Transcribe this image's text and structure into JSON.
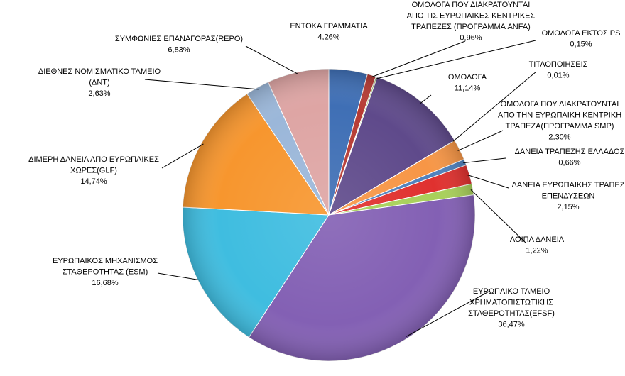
{
  "chart_data": {
    "type": "pie",
    "title": "",
    "slices": [
      {
        "label_lines": [
          "ΕΝΤΟΚΑ ΓΡΑΜΜΑΤΙΑ"
        ],
        "value_text": "4,26%",
        "value": 4.26,
        "color": "#3f6fb5"
      },
      {
        "label_lines": [
          "ΟΜΟΛΟΓΑ ΠΟΥ ΔΙΑΚΡΑΤΟΥΝΤΑΙ",
          "ΑΠΟ  ΤΙΣ ΕΥΡΩΠΑΙΚΕΣ ΚΕΝΤΡΙΚΕΣ",
          "ΤΡΑΠΕΖΕΣ  (ΠΡΟΓΡΑΜΜΑ ANFA)"
        ],
        "value_text": "0,96%",
        "value": 0.96,
        "color": "#b73b34"
      },
      {
        "label_lines": [
          "ΟΜΟΛΟΓΑ ΕΚΤΟΣ PS"
        ],
        "value_text": "0,15%",
        "value": 0.15,
        "color": "#98b954"
      },
      {
        "label_lines": [
          "ΟΜΟΛΟΓΑ"
        ],
        "value_text": "11,14%",
        "value": 11.14,
        "color": "#5f4a8b"
      },
      {
        "label_lines": [
          "ΤΙΤΛΟΠΟΙΗΣΕΙΣ"
        ],
        "value_text": "0,01%",
        "value": 0.01,
        "color": "#4bacc6"
      },
      {
        "label_lines": [
          "ΟΜΟΛΟΓΑ ΠΟΥ ΔΙΑΚΡΑΤΟΥΝΤΑΙ",
          "ΑΠΟ ΤΗΝ ΕΥΡΩΠΑΙΚΗ ΚΕΝΤΡΙΚΗ",
          "ΤΡΑΠΕΖΑ(ΠΡΟΓΡΑΜΜΑ SMP)"
        ],
        "value_text": "2,30%",
        "value": 2.3,
        "color": "#f79646"
      },
      {
        "label_lines": [
          "ΔΑΝΕΙΑ ΤΡΑΠΕΖΗΣ ΕΛΛΑΔΟΣ"
        ],
        "value_text": "0,66%",
        "value": 0.66,
        "color": "#4f81bd"
      },
      {
        "label_lines": [
          "ΔΑΝΕΙΑ ΕΥΡΩΠΑΙΚΗΣ ΤΡΑΠΕΖ",
          "ΕΠΕΝΔΥΣΕΩΝ"
        ],
        "value_text": "2,15%",
        "value": 2.15,
        "color": "#e0312f"
      },
      {
        "label_lines": [
          "ΛΟΙΠΑ ΔΑΝΕΙΑ"
        ],
        "value_text": "1,22%",
        "value": 1.22,
        "color": "#a8d05a"
      },
      {
        "label_lines": [
          "ΕΥΡΩΠΑΙΚΟ ΤΑΜΕΙΟ",
          "ΧΡΗΜΑΤΟΠΙΣΤΩΤΙΚΗΣ",
          "ΣΤΑΘΕΡΟΤΗΤΑΣ(EFSF)"
        ],
        "value_text": "36,47%",
        "value": 36.47,
        "color": "#8360b4"
      },
      {
        "label_lines": [
          "ΕΥΡΩΠΑΙΚΟΣ ΜΗΧΑΝΙΣΜΟΣ",
          "ΣΤΑΘΕΡΟΤΗΤΑΣ (ESM)"
        ],
        "value_text": "16,68%",
        "value": 16.68,
        "color": "#3fbde0"
      },
      {
        "label_lines": [
          "ΔΙΜΕΡΗ ΔΑΝΕΙΑ ΑΠΟ ΕΥΡΩΠΑΙΚΕΣ",
          "ΧΩΡΕΣ(GLF)"
        ],
        "value_text": "14,74%",
        "value": 14.74,
        "color": "#f7962e"
      },
      {
        "label_lines": [
          "ΔΙΕΘΝΕΣ ΝΟΜΙΣΜΑΤΙΚΟ ΤΑΜΕΙΟ",
          "(ΔΝΤ)"
        ],
        "value_text": "2,63%",
        "value": 2.63,
        "color": "#9bb7d9"
      },
      {
        "label_lines": [
          "ΣΥΜΦΩΝΙΕΣ ΕΠΑΝΑΓΟΡΑΣ(REPO)"
        ],
        "value_text": "6,83%",
        "value": 6.83,
        "color": "#dea5a4"
      }
    ]
  }
}
